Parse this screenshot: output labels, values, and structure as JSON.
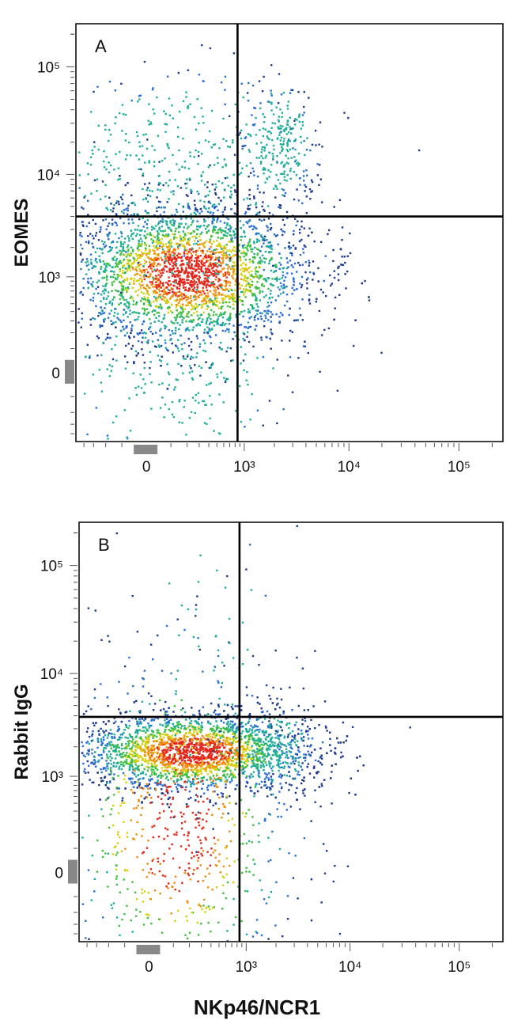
{
  "chart_data": [
    {
      "type": "scatter",
      "panel_label": "A",
      "ylabel": "EOMES",
      "xlabel": "",
      "x_ticks": [
        "0",
        "10³",
        "10⁴",
        "10⁵"
      ],
      "y_ticks": [
        "0",
        "10³",
        "10⁴",
        "10⁵"
      ],
      "x_scale": "biexponential",
      "y_scale": "biexponential",
      "quadrant_gate": {
        "x": 850,
        "y": 4000
      },
      "populations": [
        {
          "name": "",
          "center_x": 200,
          "center_y": 1100,
          "count": 3000,
          "spread_x": 1.0,
          "spread_y": 0.32
        },
        {
          "name": "",
          "center_x": 150,
          "center_y": 12000,
          "count": 420,
          "spread_x": 1.1,
          "spread_y": 0.45
        },
        {
          "name": "",
          "center_x": 2200,
          "center_y": 20000,
          "count": 240,
          "spread_x": 0.28,
          "spread_y": 0.28
        },
        {
          "name": "",
          "center_x": 100,
          "center_y": 200,
          "count": 450,
          "spread_x": 1.0,
          "spread_y": 0.7
        }
      ],
      "colors": [
        "#1e3a8a",
        "#2b6ed6",
        "#1fae9a",
        "#3fbf3f",
        "#d4d012",
        "#f08c0c",
        "#e4271b"
      ]
    },
    {
      "type": "scatter",
      "panel_label": "B",
      "ylabel": "Rabbit IgG",
      "xlabel": "NKp46/NCR1",
      "x_ticks": [
        "0",
        "10³",
        "10⁴",
        "10⁵"
      ],
      "y_ticks": [
        "0",
        "10³",
        "10⁴",
        "10⁵"
      ],
      "x_scale": "biexponential",
      "y_scale": "biexponential",
      "quadrant_gate": {
        "x": 850,
        "y": 3900
      },
      "populations": [
        {
          "name": "",
          "center_x": 220,
          "center_y": 1800,
          "count": 3200,
          "spread_x": 0.95,
          "spread_y": 0.18
        },
        {
          "name": "",
          "center_x": 120,
          "center_y": 250,
          "count": 800,
          "spread_x": 1.0,
          "spread_y": 0.85
        },
        {
          "name": "",
          "center_x": 1800,
          "center_y": 2000,
          "count": 220,
          "spread_x": 0.35,
          "spread_y": 0.2
        },
        {
          "name": "",
          "center_x": 300,
          "center_y": 20000,
          "count": 40,
          "spread_x": 0.6,
          "spread_y": 0.7
        }
      ],
      "colors": [
        "#1e3a8a",
        "#2b6ed6",
        "#1fae9a",
        "#3fbf3f",
        "#d4d012",
        "#f08c0c",
        "#e4271b"
      ]
    }
  ]
}
